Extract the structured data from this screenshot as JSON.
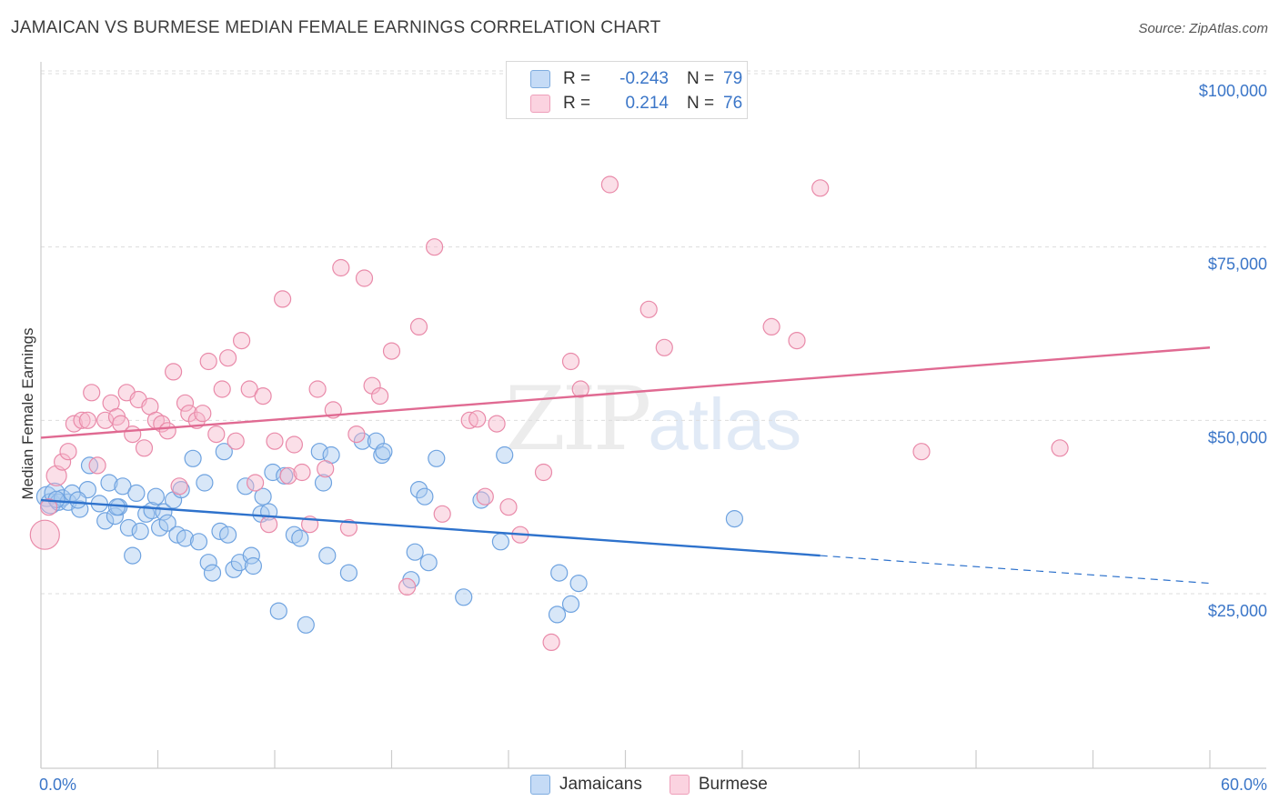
{
  "title": "JAMAICAN VS BURMESE MEDIAN FEMALE EARNINGS CORRELATION CHART",
  "source": "Source: ZipAtlas.com",
  "watermark": {
    "zip": "ZIP",
    "atlas": "atlas"
  },
  "legend": {
    "rows": [
      {
        "r_label": "R =",
        "r_value": "-0.243",
        "n_label": "N =",
        "n_value": "79",
        "color": "#a9c9f0"
      },
      {
        "r_label": "R =",
        "r_value": "0.214",
        "n_label": "N =",
        "n_value": "76",
        "color": "#f6b8cc"
      }
    ]
  },
  "bottom_legend": [
    {
      "label": "Jamaicans",
      "color": "#a9c9f0"
    },
    {
      "label": "Burmese",
      "color": "#f6b8cc"
    }
  ],
  "chart_data": {
    "type": "scatter",
    "title": "JAMAICAN VS BURMESE MEDIAN FEMALE EARNINGS CORRELATION CHART",
    "xlabel": "",
    "ylabel": "Median Female Earnings",
    "xlim": [
      0,
      60
    ],
    "ylim": [
      0,
      105000
    ],
    "x_tick_labels": {
      "left": "0.0%",
      "right": "60.0%"
    },
    "y_ticks": [
      {
        "value": 25000,
        "label": "$25,000"
      },
      {
        "value": 50000,
        "label": "$50,000"
      },
      {
        "value": 75000,
        "label": "$75,000"
      },
      {
        "value": 100000,
        "label": "$100,000"
      }
    ],
    "series": [
      {
        "name": "Jamaicans",
        "color": "#6fa3e0",
        "fill": "#a9c9f0",
        "trend": {
          "x0": 0,
          "y0": 38500,
          "x1": 40,
          "y1": 30500,
          "dash_to_x": 60,
          "dash_to_y": 26500,
          "color": "#2e72cc"
        },
        "points": [
          [
            0.3,
            39000
          ],
          [
            0.5,
            38000
          ],
          [
            0.7,
            39500
          ],
          [
            0.9,
            38200
          ],
          [
            1.1,
            38800
          ],
          [
            1.4,
            38200
          ],
          [
            1.6,
            39500
          ],
          [
            2.0,
            37200
          ],
          [
            2.4,
            40000
          ],
          [
            2.5,
            43500
          ],
          [
            3.0,
            38000
          ],
          [
            3.3,
            35500
          ],
          [
            3.5,
            41000
          ],
          [
            3.8,
            36200
          ],
          [
            4.0,
            37500
          ],
          [
            4.2,
            40500
          ],
          [
            4.5,
            34500
          ],
          [
            4.7,
            30500
          ],
          [
            4.9,
            39500
          ],
          [
            5.1,
            34000
          ],
          [
            5.4,
            36500
          ],
          [
            5.7,
            37000
          ],
          [
            5.9,
            39000
          ],
          [
            6.1,
            34500
          ],
          [
            6.3,
            36800
          ],
          [
            6.5,
            35200
          ],
          [
            6.8,
            38500
          ],
          [
            7.0,
            33500
          ],
          [
            7.2,
            40000
          ],
          [
            7.4,
            33000
          ],
          [
            7.8,
            44500
          ],
          [
            8.1,
            32500
          ],
          [
            8.4,
            41000
          ],
          [
            8.6,
            29500
          ],
          [
            8.8,
            28000
          ],
          [
            9.2,
            34000
          ],
          [
            9.4,
            45500
          ],
          [
            9.6,
            33500
          ],
          [
            9.9,
            28500
          ],
          [
            10.2,
            29500
          ],
          [
            10.5,
            40500
          ],
          [
            10.8,
            30500
          ],
          [
            10.9,
            29000
          ],
          [
            11.3,
            36500
          ],
          [
            11.4,
            39000
          ],
          [
            11.7,
            36800
          ],
          [
            11.9,
            42500
          ],
          [
            12.2,
            22500
          ],
          [
            12.5,
            42000
          ],
          [
            13.0,
            33500
          ],
          [
            13.3,
            33000
          ],
          [
            13.6,
            20500
          ],
          [
            14.3,
            45500
          ],
          [
            14.5,
            41000
          ],
          [
            14.7,
            30500
          ],
          [
            14.9,
            45000
          ],
          [
            15.8,
            28000
          ],
          [
            16.5,
            47000
          ],
          [
            17.2,
            47000
          ],
          [
            17.5,
            45000
          ],
          [
            17.6,
            45500
          ],
          [
            19.0,
            27000
          ],
          [
            19.2,
            31000
          ],
          [
            19.4,
            40000
          ],
          [
            19.7,
            39000
          ],
          [
            19.9,
            29500
          ],
          [
            20.3,
            44500
          ],
          [
            21.7,
            24500
          ],
          [
            22.6,
            38500
          ],
          [
            23.6,
            32500
          ],
          [
            23.8,
            45000
          ],
          [
            26.5,
            22000
          ],
          [
            26.6,
            28000
          ],
          [
            27.2,
            23500
          ],
          [
            27.6,
            26500
          ],
          [
            35.6,
            35800
          ],
          [
            0.8,
            38600
          ],
          [
            1.9,
            38500
          ],
          [
            3.9,
            37500
          ]
        ]
      },
      {
        "name": "Burmese",
        "color": "#e98aa9",
        "fill": "#f6b8cc",
        "trend": {
          "x0": 0,
          "y0": 47500,
          "x1": 60,
          "y1": 60500,
          "color": "#e06a92"
        },
        "points": [
          [
            0.2,
            33500
          ],
          [
            0.4,
            37500
          ],
          [
            0.8,
            42000
          ],
          [
            1.1,
            44000
          ],
          [
            1.4,
            45500
          ],
          [
            1.7,
            49500
          ],
          [
            2.1,
            50000
          ],
          [
            2.4,
            50000
          ],
          [
            2.6,
            54000
          ],
          [
            2.9,
            43500
          ],
          [
            3.3,
            50000
          ],
          [
            3.6,
            52500
          ],
          [
            3.9,
            50500
          ],
          [
            4.1,
            49500
          ],
          [
            4.4,
            54000
          ],
          [
            4.7,
            48000
          ],
          [
            5.0,
            53000
          ],
          [
            5.3,
            46000
          ],
          [
            5.6,
            52000
          ],
          [
            5.9,
            50000
          ],
          [
            6.2,
            49500
          ],
          [
            6.5,
            48500
          ],
          [
            6.8,
            57000
          ],
          [
            7.1,
            40500
          ],
          [
            7.4,
            52500
          ],
          [
            7.6,
            51000
          ],
          [
            8.0,
            50000
          ],
          [
            8.3,
            51000
          ],
          [
            8.6,
            58500
          ],
          [
            9.0,
            48000
          ],
          [
            9.3,
            54500
          ],
          [
            9.6,
            59000
          ],
          [
            10.0,
            47000
          ],
          [
            10.3,
            61500
          ],
          [
            10.7,
            54500
          ],
          [
            11.0,
            41000
          ],
          [
            11.4,
            53500
          ],
          [
            11.7,
            35000
          ],
          [
            12.0,
            47000
          ],
          [
            12.4,
            67500
          ],
          [
            12.7,
            42000
          ],
          [
            13.0,
            46500
          ],
          [
            13.4,
            42500
          ],
          [
            13.8,
            35000
          ],
          [
            14.2,
            54500
          ],
          [
            14.6,
            43000
          ],
          [
            15.0,
            51500
          ],
          [
            15.4,
            72000
          ],
          [
            15.8,
            34500
          ],
          [
            16.2,
            48000
          ],
          [
            16.6,
            70500
          ],
          [
            17.0,
            55000
          ],
          [
            17.4,
            53500
          ],
          [
            18.0,
            60000
          ],
          [
            18.8,
            26000
          ],
          [
            19.4,
            63500
          ],
          [
            20.2,
            75000
          ],
          [
            20.6,
            36500
          ],
          [
            22.0,
            50000
          ],
          [
            22.8,
            39000
          ],
          [
            23.4,
            49500
          ],
          [
            24.0,
            37500
          ],
          [
            24.6,
            33500
          ],
          [
            25.8,
            42500
          ],
          [
            26.2,
            18000
          ],
          [
            27.2,
            58500
          ],
          [
            27.7,
            54500
          ],
          [
            29.2,
            84000
          ],
          [
            31.2,
            66000
          ],
          [
            32.0,
            60500
          ],
          [
            37.5,
            63500
          ],
          [
            38.8,
            61500
          ],
          [
            40.0,
            83500
          ],
          [
            45.2,
            45500
          ],
          [
            52.3,
            46000
          ],
          [
            22.4,
            50200
          ]
        ]
      }
    ]
  }
}
